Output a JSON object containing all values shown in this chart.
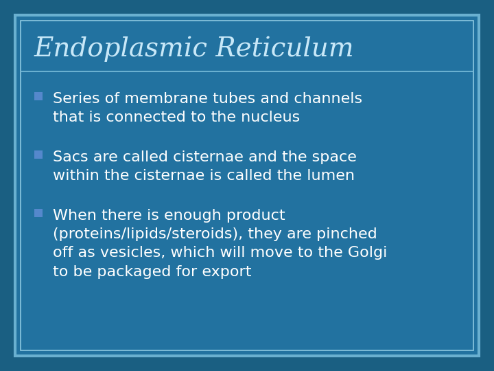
{
  "title": "Endoplasmic Reticulum",
  "outer_bg": "#1a5f82",
  "slide_bg": "#2272a0",
  "border_outer_color": "#6ab0d0",
  "border_inner_color": "#8cc8e0",
  "title_color": "#c8e8f8",
  "title_fontsize": 28,
  "line_color": "#6ab0d0",
  "bullet_color": "#5588cc",
  "text_color": "#ffffff",
  "bullet_points": [
    "Series of membrane tubes and channels\nthat is connected to the nucleus",
    "Sacs are called cisternae and the space\nwithin the cisternae is called the lumen",
    "When there is enough product\n(proteins/lipids/steroids), they are pinched\noff as vesicles, which will move to the Golgi\nto be packaged for export"
  ],
  "bullet_fontsize": 16
}
